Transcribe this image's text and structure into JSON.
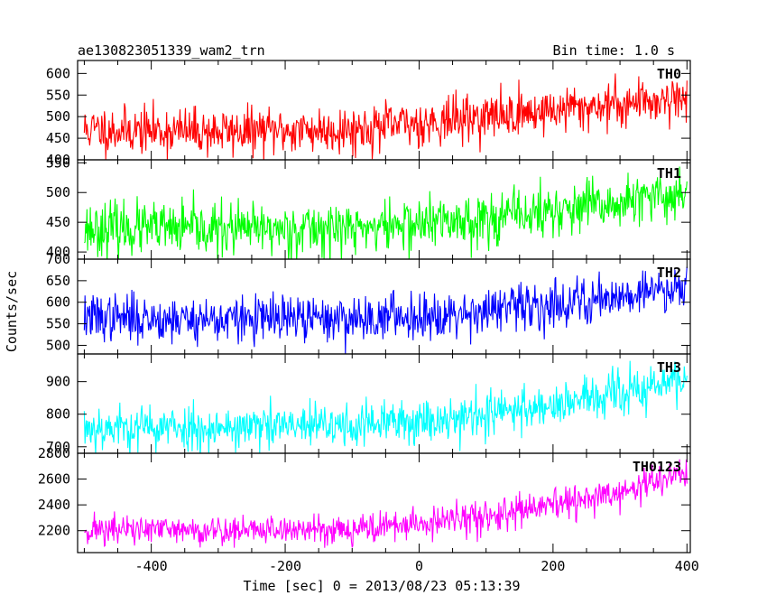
{
  "chart_data": {
    "type": "line",
    "title": "ae130823051339_wam2_trn",
    "bin_time_label": "Bin time: 1.0 s",
    "xlabel": "Time [sec] 0 = 2013/08/23 05:13:39",
    "ylabel": "Counts/sec",
    "xlim": [
      -510,
      405
    ],
    "x_ticks": [
      -400,
      -200,
      0,
      200,
      400
    ],
    "x_range": [
      -500,
      400
    ],
    "x_step": 1,
    "shared_x_axis": true,
    "panels": [
      {
        "name": "TH0",
        "color": "#ff0000",
        "ylim": [
          400,
          630
        ],
        "y_ticks": [
          400,
          450,
          500,
          550,
          600
        ],
        "trend": [
          [
            -500,
            470
          ],
          [
            -300,
            465
          ],
          [
            -100,
            470
          ],
          [
            0,
            485
          ],
          [
            100,
            500
          ],
          [
            200,
            515
          ],
          [
            300,
            530
          ],
          [
            400,
            545
          ]
        ],
        "noise_sd": 27,
        "seed": 11
      },
      {
        "name": "TH1",
        "color": "#00ff00",
        "ylim": [
          388,
          555
        ],
        "y_ticks": [
          400,
          450,
          500,
          550
        ],
        "trend": [
          [
            -500,
            440
          ],
          [
            -300,
            437
          ],
          [
            -100,
            440
          ],
          [
            0,
            447
          ],
          [
            100,
            457
          ],
          [
            200,
            468
          ],
          [
            300,
            480
          ],
          [
            400,
            500
          ]
        ],
        "noise_sd": 22,
        "seed": 23
      },
      {
        "name": "TH2",
        "color": "#0000ff",
        "ylim": [
          480,
          700
        ],
        "y_ticks": [
          500,
          550,
          600,
          650,
          700
        ],
        "trend": [
          [
            -500,
            565
          ],
          [
            -300,
            560
          ],
          [
            -100,
            562
          ],
          [
            0,
            570
          ],
          [
            100,
            580
          ],
          [
            200,
            595
          ],
          [
            300,
            615
          ],
          [
            400,
            640
          ]
        ],
        "noise_sd": 27,
        "seed": 37
      },
      {
        "name": "TH3",
        "color": "#00ffff",
        "ylim": [
          680,
          985
        ],
        "y_ticks": [
          700,
          800,
          900
        ],
        "trend": [
          [
            -500,
            760
          ],
          [
            -300,
            758
          ],
          [
            -100,
            765
          ],
          [
            0,
            780
          ],
          [
            100,
            800
          ],
          [
            200,
            830
          ],
          [
            300,
            860
          ],
          [
            400,
            910
          ]
        ],
        "noise_sd": 35,
        "seed": 53
      },
      {
        "name": "TH0123",
        "color": "#ff00ff",
        "ylim": [
          2030,
          2800
        ],
        "y_ticks": [
          2200,
          2400,
          2600,
          2800
        ],
        "trend": [
          [
            -500,
            2210
          ],
          [
            -300,
            2200
          ],
          [
            -100,
            2215
          ],
          [
            0,
            2250
          ],
          [
            100,
            2310
          ],
          [
            200,
            2390
          ],
          [
            300,
            2490
          ],
          [
            400,
            2660
          ]
        ],
        "noise_sd": 60,
        "seed": 71
      }
    ]
  }
}
